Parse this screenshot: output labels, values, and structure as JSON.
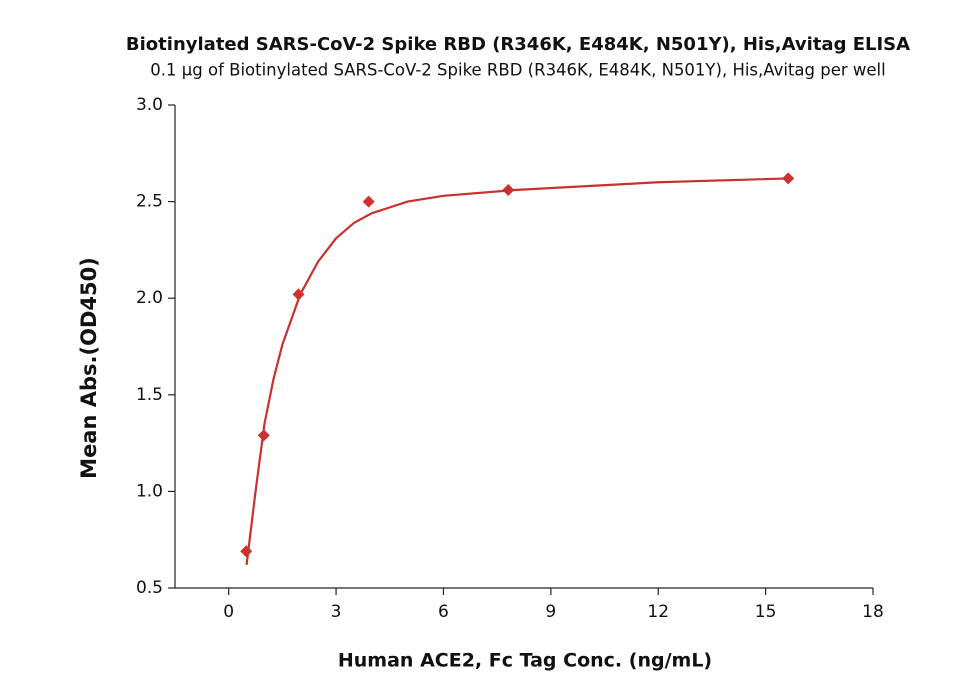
{
  "chart_data": {
    "type": "scatter",
    "title": "Biotinylated SARS-CoV-2 Spike RBD (R346K, E484K, N501Y), His,Avitag ELISA",
    "subtitle": "0.1 μg of Biotinylated SARS-CoV-2 Spike RBD (R346K, E484K, N501Y), His,Avitag per well",
    "x_label": "Human ACE2, Fc Tag Conc. (ng/mL)",
    "y_label": "Mean Abs.(OD450)",
    "series": [
      {
        "kind": "points",
        "marker": "diamond",
        "color": "#d0312d",
        "x": [
          0.49,
          0.98,
          1.95,
          3.91,
          7.81,
          15.63
        ],
        "values": [
          0.69,
          1.29,
          2.02,
          2.5,
          2.56,
          2.62
        ]
      },
      {
        "kind": "curve",
        "color": "#c8312d",
        "x": [
          0.5,
          0.75,
          1,
          1.25,
          1.5,
          2,
          2.5,
          3,
          3.5,
          4,
          5,
          6,
          8,
          10,
          12,
          15.63
        ],
        "values": [
          0.62,
          1.0,
          1.35,
          1.58,
          1.76,
          2.02,
          2.19,
          2.31,
          2.39,
          2.44,
          2.5,
          2.53,
          2.56,
          2.58,
          2.6,
          2.62
        ]
      }
    ],
    "xlim": [
      -1.5,
      18
    ],
    "xticks": [
      0,
      3,
      6,
      9,
      12,
      15,
      18
    ],
    "ylim": [
      0.5,
      3.0
    ],
    "yticks": [
      0.5,
      {
        "value": 1,
        "label": "1.0"
      },
      1.5,
      {
        "value": 2,
        "label": "2.0"
      },
      2.5,
      {
        "value": 3,
        "label": "3.0"
      }
    ]
  }
}
